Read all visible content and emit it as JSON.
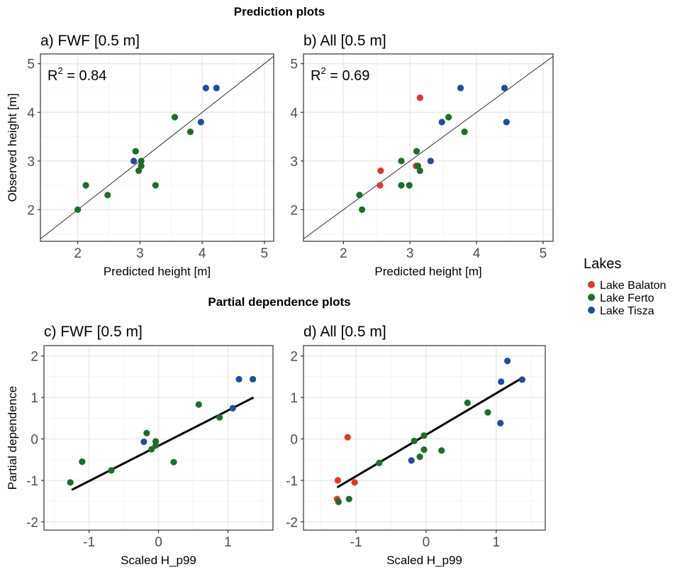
{
  "titles": {
    "prediction": "Prediction plots",
    "partial": "Partial dependence plots"
  },
  "colors": {
    "Lake Balaton": "#e8352a",
    "Lake Ferto": "#1c6e2a",
    "Lake Tisza": "#1f4e9c",
    "grid_major": "#ebebeb",
    "grid_minor": "#f4f4f4",
    "border": "#333333"
  },
  "legend": {
    "title": "Lakes",
    "items": [
      "Lake Balaton",
      "Lake Ferto",
      "Lake Tisza"
    ]
  },
  "chart_data": [
    {
      "id": "a",
      "type": "scatter",
      "title": "a) FWF [0.5 m]",
      "xlabel": "Predicted height [m]",
      "ylabel": "Observed height [m]",
      "xlim": [
        1.4,
        5.15
      ],
      "ylim": [
        1.35,
        5.2
      ],
      "xticks": [
        2,
        3,
        4,
        5
      ],
      "yticks": [
        2,
        3,
        4,
        5
      ],
      "annotation": "R² = 0.84",
      "reference_line": "identity",
      "points": [
        {
          "x": 2.0,
          "y": 2.0,
          "lake": "Lake Ferto"
        },
        {
          "x": 2.13,
          "y": 2.5,
          "lake": "Lake Ferto"
        },
        {
          "x": 2.48,
          "y": 2.3,
          "lake": "Lake Ferto"
        },
        {
          "x": 2.9,
          "y": 3.0,
          "lake": "Lake Tisza"
        },
        {
          "x": 2.93,
          "y": 3.2,
          "lake": "Lake Ferto"
        },
        {
          "x": 2.98,
          "y": 2.8,
          "lake": "Lake Ferto"
        },
        {
          "x": 3.02,
          "y": 2.9,
          "lake": "Lake Ferto"
        },
        {
          "x": 3.02,
          "y": 3.0,
          "lake": "Lake Ferto"
        },
        {
          "x": 3.25,
          "y": 2.5,
          "lake": "Lake Ferto"
        },
        {
          "x": 3.56,
          "y": 3.9,
          "lake": "Lake Ferto"
        },
        {
          "x": 3.81,
          "y": 3.6,
          "lake": "Lake Ferto"
        },
        {
          "x": 3.98,
          "y": 3.8,
          "lake": "Lake Tisza"
        },
        {
          "x": 4.06,
          "y": 4.5,
          "lake": "Lake Tisza"
        },
        {
          "x": 4.23,
          "y": 4.5,
          "lake": "Lake Tisza"
        }
      ]
    },
    {
      "id": "b",
      "type": "scatter",
      "title": "b) All [0.5 m]",
      "xlabel": "Predicted height [m]",
      "ylabel": "",
      "xlim": [
        1.4,
        5.15
      ],
      "ylim": [
        1.35,
        5.2
      ],
      "xticks": [
        2,
        3,
        4,
        5
      ],
      "yticks": [
        2,
        3,
        4,
        5
      ],
      "annotation": "R² = 0.69",
      "reference_line": "identity",
      "points": [
        {
          "x": 2.24,
          "y": 2.3,
          "lake": "Lake Ferto"
        },
        {
          "x": 2.28,
          "y": 2.0,
          "lake": "Lake Ferto"
        },
        {
          "x": 2.55,
          "y": 2.5,
          "lake": "Lake Balaton"
        },
        {
          "x": 2.56,
          "y": 2.8,
          "lake": "Lake Balaton"
        },
        {
          "x": 2.87,
          "y": 2.5,
          "lake": "Lake Ferto"
        },
        {
          "x": 2.87,
          "y": 3.0,
          "lake": "Lake Ferto"
        },
        {
          "x": 2.99,
          "y": 2.5,
          "lake": "Lake Ferto"
        },
        {
          "x": 3.09,
          "y": 2.9,
          "lake": "Lake Balaton"
        },
        {
          "x": 3.12,
          "y": 2.9,
          "lake": "Lake Ferto"
        },
        {
          "x": 3.1,
          "y": 3.2,
          "lake": "Lake Ferto"
        },
        {
          "x": 3.15,
          "y": 2.8,
          "lake": "Lake Ferto"
        },
        {
          "x": 3.15,
          "y": 4.3,
          "lake": "Lake Balaton"
        },
        {
          "x": 3.31,
          "y": 3.0,
          "lake": "Lake Tisza"
        },
        {
          "x": 3.48,
          "y": 3.8,
          "lake": "Lake Tisza"
        },
        {
          "x": 3.58,
          "y": 3.9,
          "lake": "Lake Ferto"
        },
        {
          "x": 3.76,
          "y": 4.5,
          "lake": "Lake Tisza"
        },
        {
          "x": 3.82,
          "y": 3.6,
          "lake": "Lake Ferto"
        },
        {
          "x": 4.42,
          "y": 4.5,
          "lake": "Lake Tisza"
        },
        {
          "x": 4.45,
          "y": 3.8,
          "lake": "Lake Tisza"
        }
      ]
    },
    {
      "id": "c",
      "type": "scatter",
      "title": "c) FWF [0.5 m]",
      "xlabel": "Scaled H_p99",
      "ylabel": "Partial dependence",
      "xlim": [
        -1.65,
        1.65
      ],
      "ylim": [
        -2.2,
        2.25
      ],
      "xticks": [
        -1,
        0,
        1
      ],
      "yticks": [
        -2,
        -1,
        0,
        1,
        2
      ],
      "fit_line": {
        "x": [
          -1.25,
          1.37
        ],
        "y": [
          -1.23,
          1.0
        ]
      },
      "points": [
        {
          "x": -1.27,
          "y": -1.05,
          "lake": "Lake Ferto"
        },
        {
          "x": -1.1,
          "y": -0.55,
          "lake": "Lake Ferto"
        },
        {
          "x": -0.68,
          "y": -0.76,
          "lake": "Lake Ferto"
        },
        {
          "x": -0.21,
          "y": -0.07,
          "lake": "Lake Tisza"
        },
        {
          "x": -0.17,
          "y": 0.14,
          "lake": "Lake Ferto"
        },
        {
          "x": -0.1,
          "y": -0.25,
          "lake": "Lake Ferto"
        },
        {
          "x": -0.04,
          "y": -0.06,
          "lake": "Lake Ferto"
        },
        {
          "x": -0.04,
          "y": -0.16,
          "lake": "Lake Ferto"
        },
        {
          "x": 0.22,
          "y": -0.56,
          "lake": "Lake Ferto"
        },
        {
          "x": 0.58,
          "y": 0.83,
          "lake": "Lake Ferto"
        },
        {
          "x": 0.88,
          "y": 0.52,
          "lake": "Lake Ferto"
        },
        {
          "x": 1.07,
          "y": 0.74,
          "lake": "Lake Tisza"
        },
        {
          "x": 1.16,
          "y": 1.44,
          "lake": "Lake Tisza"
        },
        {
          "x": 1.36,
          "y": 1.44,
          "lake": "Lake Tisza"
        }
      ]
    },
    {
      "id": "d",
      "type": "scatter",
      "title": "d) All [0.5 m]",
      "xlabel": "Scaled H_p99",
      "ylabel": "",
      "xlim": [
        -1.75,
        1.7
      ],
      "ylim": [
        -2.2,
        2.25
      ],
      "xticks": [
        -1,
        0,
        1
      ],
      "yticks": [
        -2,
        -1,
        0,
        1,
        2
      ],
      "fit_line": {
        "x": [
          -1.27,
          1.37
        ],
        "y": [
          -1.17,
          1.47
        ]
      },
      "points": [
        {
          "x": -1.27,
          "y": -1.45,
          "lake": "Lake Balaton"
        },
        {
          "x": -1.25,
          "y": -1.52,
          "lake": "Lake Ferto"
        },
        {
          "x": -1.26,
          "y": -1.0,
          "lake": "Lake Balaton"
        },
        {
          "x": -1.1,
          "y": -1.45,
          "lake": "Lake Ferto"
        },
        {
          "x": -1.12,
          "y": 0.04,
          "lake": "Lake Balaton"
        },
        {
          "x": -1.02,
          "y": -1.05,
          "lake": "Lake Balaton"
        },
        {
          "x": -0.67,
          "y": -0.58,
          "lake": "Lake Ferto"
        },
        {
          "x": -0.21,
          "y": -0.52,
          "lake": "Lake Tisza"
        },
        {
          "x": -0.17,
          "y": -0.05,
          "lake": "Lake Ferto"
        },
        {
          "x": -0.09,
          "y": -0.43,
          "lake": "Lake Ferto"
        },
        {
          "x": -0.03,
          "y": 0.08,
          "lake": "Lake Ferto"
        },
        {
          "x": -0.03,
          "y": -0.26,
          "lake": "Lake Ferto"
        },
        {
          "x": 0.22,
          "y": -0.28,
          "lake": "Lake Ferto"
        },
        {
          "x": 0.59,
          "y": 0.87,
          "lake": "Lake Ferto"
        },
        {
          "x": 0.88,
          "y": 0.64,
          "lake": "Lake Ferto"
        },
        {
          "x": 1.06,
          "y": 0.38,
          "lake": "Lake Tisza"
        },
        {
          "x": 1.07,
          "y": 1.38,
          "lake": "Lake Tisza"
        },
        {
          "x": 1.16,
          "y": 1.88,
          "lake": "Lake Tisza"
        },
        {
          "x": 1.37,
          "y": 1.43,
          "lake": "Lake Tisza"
        }
      ]
    }
  ]
}
